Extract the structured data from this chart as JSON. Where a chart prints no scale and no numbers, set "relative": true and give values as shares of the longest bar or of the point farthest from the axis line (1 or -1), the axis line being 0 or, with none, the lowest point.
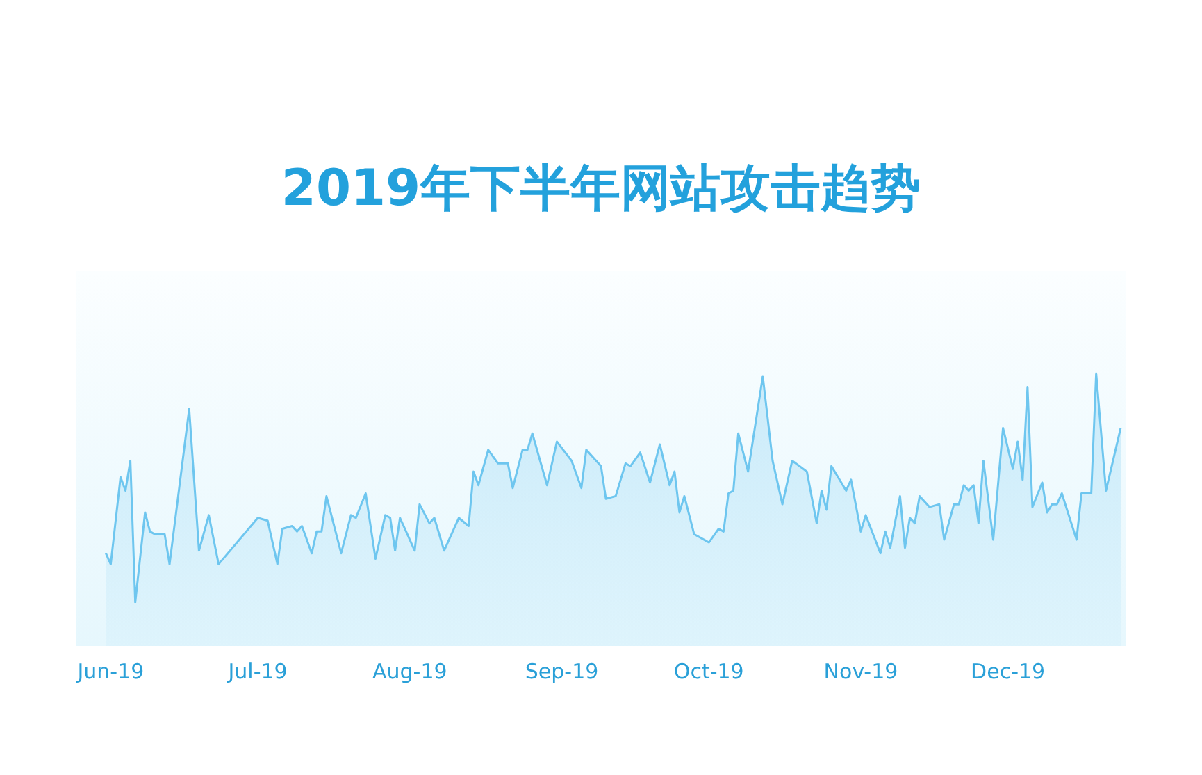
{
  "chart_data": {
    "type": "area",
    "title": "2019年下半年网站攻击趋势",
    "relative": true,
    "color": "#6ec6ef",
    "x": [
      "2019-05-31",
      "2019-06-01",
      "2019-06-03",
      "2019-06-04",
      "2019-06-05",
      "2019-06-06",
      "2019-06-08",
      "2019-06-09",
      "2019-06-10",
      "2019-06-12",
      "2019-06-13",
      "2019-06-17",
      "2019-06-19",
      "2019-06-21",
      "2019-06-23",
      "2019-07-01",
      "2019-07-03",
      "2019-07-05",
      "2019-07-06",
      "2019-07-08",
      "2019-07-09",
      "2019-07-10",
      "2019-07-12",
      "2019-07-13",
      "2019-07-14",
      "2019-07-15",
      "2019-07-18",
      "2019-07-20",
      "2019-07-21",
      "2019-07-23",
      "2019-07-25",
      "2019-07-27",
      "2019-07-28",
      "2019-07-29",
      "2019-07-30",
      "2019-08-02",
      "2019-08-03",
      "2019-08-05",
      "2019-08-06",
      "2019-08-08",
      "2019-08-11",
      "2019-08-13",
      "2019-08-14",
      "2019-08-15",
      "2019-08-17",
      "2019-08-19",
      "2019-08-21",
      "2019-08-22",
      "2019-08-24",
      "2019-08-25",
      "2019-08-26",
      "2019-08-29",
      "2019-08-31",
      "2019-09-03",
      "2019-09-05",
      "2019-09-06",
      "2019-09-09",
      "2019-09-10",
      "2019-09-12",
      "2019-09-14",
      "2019-09-15",
      "2019-09-17",
      "2019-09-19",
      "2019-09-21",
      "2019-09-23",
      "2019-09-24",
      "2019-09-25",
      "2019-09-26",
      "2019-09-28",
      "2019-10-01",
      "2019-10-03",
      "2019-10-04",
      "2019-10-05",
      "2019-10-06",
      "2019-10-07",
      "2019-10-09",
      "2019-10-12",
      "2019-10-14",
      "2019-10-16",
      "2019-10-18",
      "2019-10-21",
      "2019-10-23",
      "2019-10-24",
      "2019-10-25",
      "2019-10-26",
      "2019-10-29",
      "2019-10-30",
      "2019-11-01",
      "2019-11-02",
      "2019-11-05",
      "2019-11-06",
      "2019-11-07",
      "2019-11-09",
      "2019-11-10",
      "2019-11-11",
      "2019-11-12",
      "2019-11-13",
      "2019-11-15",
      "2019-11-17",
      "2019-11-18",
      "2019-11-20",
      "2019-11-21",
      "2019-11-22",
      "2019-11-23",
      "2019-11-24",
      "2019-11-25",
      "2019-11-26",
      "2019-11-28",
      "2019-11-30",
      "2019-12-02",
      "2019-12-03",
      "2019-12-04",
      "2019-12-05",
      "2019-12-06",
      "2019-12-08",
      "2019-12-09",
      "2019-12-10",
      "2019-12-11",
      "2019-12-12",
      "2019-12-15",
      "2019-12-16",
      "2019-12-18",
      "2019-12-19",
      "2019-12-21",
      "2019-12-24"
    ],
    "values": [
      0.34,
      0.3,
      0.62,
      0.57,
      0.68,
      0.16,
      0.49,
      0.42,
      0.41,
      0.41,
      0.3,
      0.87,
      0.35,
      0.48,
      0.3,
      0.47,
      0.46,
      0.3,
      0.43,
      0.44,
      0.42,
      0.44,
      0.34,
      0.42,
      0.42,
      0.55,
      0.34,
      0.48,
      0.47,
      0.56,
      0.32,
      0.48,
      0.47,
      0.35,
      0.47,
      0.35,
      0.52,
      0.45,
      0.47,
      0.35,
      0.47,
      0.44,
      0.64,
      0.59,
      0.72,
      0.67,
      0.67,
      0.58,
      0.72,
      0.72,
      0.78,
      0.59,
      0.75,
      0.68,
      0.58,
      0.72,
      0.66,
      0.54,
      0.55,
      0.67,
      0.66,
      0.71,
      0.6,
      0.74,
      0.59,
      0.64,
      0.49,
      0.55,
      0.41,
      0.38,
      0.43,
      0.42,
      0.56,
      0.57,
      0.78,
      0.64,
      0.99,
      0.68,
      0.52,
      0.68,
      0.64,
      0.45,
      0.57,
      0.5,
      0.66,
      0.57,
      0.61,
      0.42,
      0.48,
      0.34,
      0.42,
      0.36,
      0.55,
      0.36,
      0.47,
      0.45,
      0.55,
      0.51,
      0.52,
      0.39,
      0.52,
      0.52,
      0.59,
      0.57,
      0.59,
      0.45,
      0.68,
      0.39,
      0.8,
      0.65,
      0.75,
      0.61,
      0.95,
      0.51,
      0.6,
      0.49,
      0.52,
      0.52,
      0.56,
      0.39,
      0.56,
      0.56,
      1,
      0.57,
      0.8
    ],
    "xlim": [
      "2019-05-25",
      "2019-12-25"
    ],
    "xticks": [
      {
        "value": "2019-06-01",
        "label": "Jun-19"
      },
      {
        "value": "2019-07-01",
        "label": "Jul-19"
      },
      {
        "value": "2019-08-01",
        "label": "Aug-19"
      },
      {
        "value": "2019-09-01",
        "label": "Sep-19"
      },
      {
        "value": "2019-10-01",
        "label": "Oct-19"
      },
      {
        "value": "2019-11-01",
        "label": "Nov-19"
      },
      {
        "value": "2019-12-01",
        "label": "Dec-19"
      }
    ]
  }
}
